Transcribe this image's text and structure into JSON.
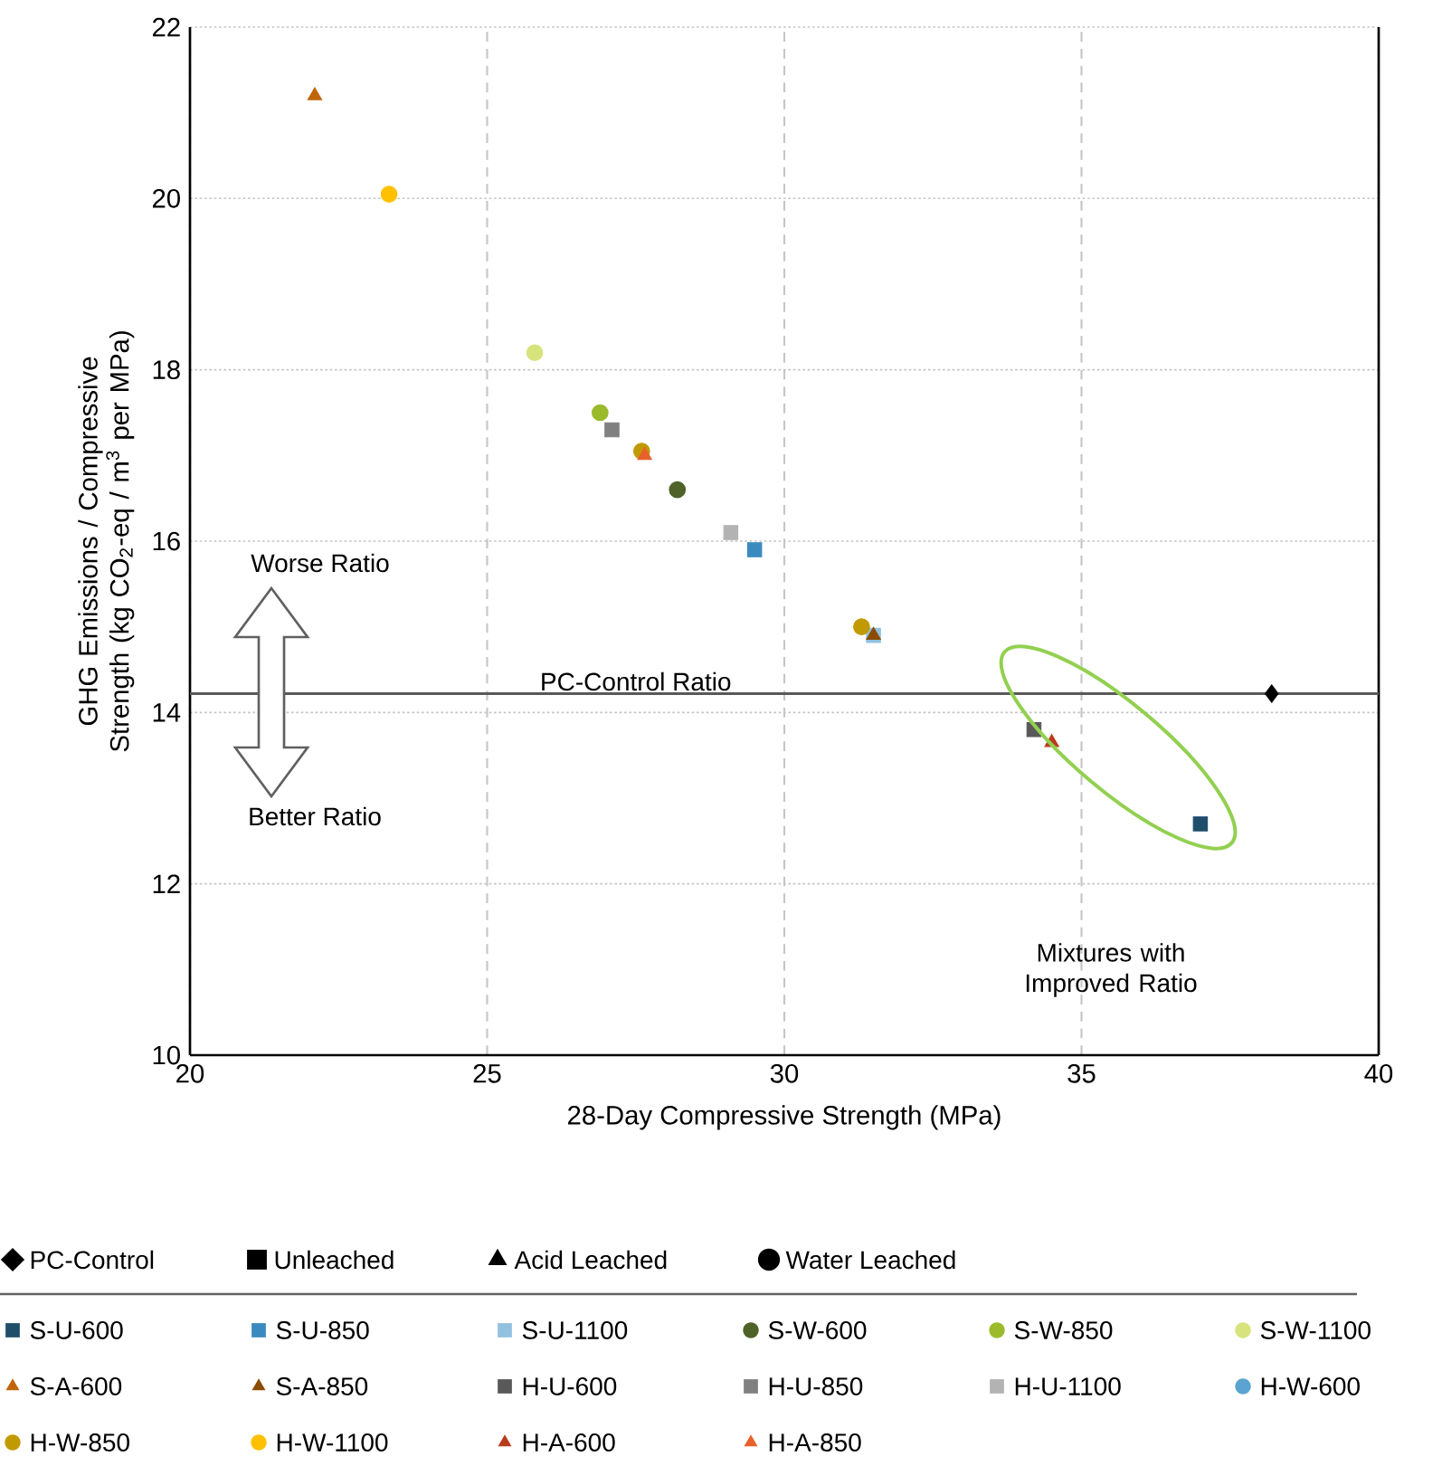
{
  "chart_data": {
    "type": "scatter",
    "xlabel": "28-Day Compressive Strength (MPa)",
    "ylabel": "GHG Emissions / Compressive Strength (kg CO$_{2}$-eq / m$^{3}$ per MPa)",
    "xlim": [
      20,
      40
    ],
    "ylim": [
      10,
      22
    ],
    "xticks": [
      20,
      25,
      30,
      35,
      40
    ],
    "yticks": [
      10,
      12,
      14,
      16,
      18,
      20,
      22
    ],
    "grid": true,
    "legend": "bottom",
    "ref_lines": [
      {
        "axis": "y",
        "value": 14.22,
        "label": "PC-Control Ratio",
        "color": "#595959"
      }
    ],
    "annotations": [
      "Worse Ratio",
      "Better Ratio",
      "Mixtures with Improved Ratio"
    ],
    "series": [
      {
        "name": "PC-Control",
        "color": "#000000",
        "marker": "diamond",
        "x": [
          38.2
        ],
        "values": [
          14.22
        ]
      },
      {
        "name": "Unleached",
        "color": "#000000",
        "marker": "square",
        "x": [
          null
        ],
        "values": [
          null
        ]
      },
      {
        "name": "Acid Leached",
        "color": "#000000",
        "marker": "triangle",
        "x": [
          null
        ],
        "values": [
          null
        ]
      },
      {
        "name": "Water Leached",
        "color": "#000000",
        "marker": "circle",
        "x": [
          null
        ],
        "values": [
          null
        ]
      },
      {
        "name": "S-U-600",
        "color": "#1f4e6b",
        "marker": "square",
        "x": [
          37.0
        ],
        "values": [
          12.7
        ]
      },
      {
        "name": "S-U-850",
        "color": "#3a8abf",
        "marker": "square",
        "x": [
          29.5
        ],
        "values": [
          15.9
        ]
      },
      {
        "name": "S-U-1100",
        "color": "#92c1e0",
        "marker": "square",
        "x": [
          31.5
        ],
        "values": [
          14.9
        ]
      },
      {
        "name": "S-W-600",
        "color": "#4f6228",
        "marker": "circle",
        "x": [
          28.2
        ],
        "values": [
          16.6
        ]
      },
      {
        "name": "S-W-850",
        "color": "#9bbb2d",
        "marker": "circle",
        "x": [
          26.9
        ],
        "values": [
          17.5
        ]
      },
      {
        "name": "S-W-1100",
        "color": "#d7e37c",
        "marker": "circle",
        "x": [
          25.8
        ],
        "values": [
          18.2
        ]
      },
      {
        "name": "S-A-600",
        "color": "#c0650a",
        "marker": "triangle",
        "x": [
          22.1
        ],
        "values": [
          21.2
        ]
      },
      {
        "name": "S-A-850",
        "color": "#8b4c00",
        "marker": "triangle",
        "x": [
          31.5
        ],
        "values": [
          14.9
        ]
      },
      {
        "name": "H-U-600",
        "color": "#595959",
        "marker": "square",
        "x": [
          34.2
        ],
        "values": [
          13.8
        ]
      },
      {
        "name": "H-U-850",
        "color": "#808080",
        "marker": "square",
        "x": [
          27.1
        ],
        "values": [
          17.3
        ]
      },
      {
        "name": "H-U-1100",
        "color": "#b3b3b3",
        "marker": "square",
        "x": [
          29.1
        ],
        "values": [
          16.1
        ]
      },
      {
        "name": "H-W-600",
        "color": "#5ba3d0",
        "marker": "circle",
        "x": [
          null
        ],
        "values": [
          null
        ]
      },
      {
        "name": "H-W-850",
        "color": "#c09a00",
        "marker": "circle",
        "x": [
          31.3,
          27.6
        ],
        "values": [
          15.0,
          17.05
        ]
      },
      {
        "name": "H-W-1100",
        "color": "#ffc000",
        "marker": "circle",
        "x": [
          23.35
        ],
        "values": [
          20.05
        ]
      },
      {
        "name": "H-A-600",
        "color": "#b83c1b",
        "marker": "triangle",
        "x": [
          34.5
        ],
        "values": [
          13.65
        ]
      },
      {
        "name": "H-A-850",
        "color": "#e8602a",
        "marker": "triangle",
        "x": [
          27.65
        ],
        "values": [
          17.0
        ]
      }
    ]
  }
}
